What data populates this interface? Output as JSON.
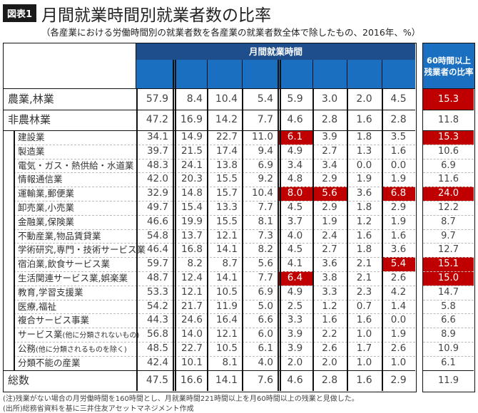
{
  "figure": {
    "badge": "図表1",
    "title": "月間就業時間別就業者数の比率",
    "subtitle": "（各産業における労働時間別の就業者数を各産業の就業者数全体で除したもの、2016年、%）"
  },
  "table": {
    "group_header": "月間就業時間",
    "sub_headers": [
      "",
      "",
      "",
      "",
      "",
      "",
      "",
      ""
    ],
    "right_header_line1": "60時間以上",
    "right_header_line2": "残業者の比率",
    "colors": {
      "header_dark": "#1f4e8c",
      "header_blue": "#1a6fc0",
      "highlight": "#c00000"
    },
    "rows": [
      {
        "name": "農業,林業",
        "level": 0,
        "values": [
          "57.9",
          "8.4",
          "10.4",
          "5.4",
          "5.9",
          "3.0",
          "2.0",
          "4.5"
        ],
        "hl": [],
        "ratio": "15.3",
        "ratio_hl": true
      },
      {
        "name": "非農林業",
        "level": 0,
        "values": [
          "47.2",
          "16.9",
          "14.2",
          "7.7",
          "4.6",
          "2.8",
          "1.6",
          "2.8"
        ],
        "hl": [],
        "ratio": "11.8",
        "ratio_hl": false
      },
      {
        "name": "建設業",
        "level": 1,
        "values": [
          "34.1",
          "14.9",
          "22.7",
          "11.0",
          "6.1",
          "3.9",
          "1.8",
          "3.5"
        ],
        "hl": [
          4
        ],
        "ratio": "15.3",
        "ratio_hl": true
      },
      {
        "name": "製造業",
        "level": 1,
        "values": [
          "39.7",
          "21.5",
          "17.4",
          "9.4",
          "4.9",
          "2.7",
          "1.3",
          "1.6"
        ],
        "hl": [],
        "ratio": "10.6",
        "ratio_hl": false
      },
      {
        "name": "電気・ガス・熱供給・水道業",
        "level": 1,
        "values": [
          "48.3",
          "24.1",
          "13.8",
          "6.9",
          "3.4",
          "3.4",
          "0.0",
          "0.0"
        ],
        "hl": [],
        "ratio": "6.9",
        "ratio_hl": false
      },
      {
        "name": "情報通信業",
        "level": 1,
        "values": [
          "42.0",
          "20.3",
          "15.5",
          "9.2",
          "4.8",
          "2.9",
          "1.9",
          "1.9"
        ],
        "hl": [],
        "ratio": "11.6",
        "ratio_hl": false
      },
      {
        "name": "運輸業,郵便業",
        "level": 1,
        "values": [
          "32.9",
          "14.8",
          "15.7",
          "10.4",
          "8.0",
          "5.6",
          "3.6",
          "6.8"
        ],
        "hl": [
          4,
          5,
          7
        ],
        "ratio": "24.0",
        "ratio_hl": true
      },
      {
        "name": "卸売業,小売業",
        "level": 1,
        "values": [
          "49.7",
          "15.4",
          "13.3",
          "7.7",
          "4.5",
          "2.9",
          "1.8",
          "2.9"
        ],
        "hl": [],
        "ratio": "12.2",
        "ratio_hl": false
      },
      {
        "name": "金融業,保険業",
        "level": 1,
        "values": [
          "46.6",
          "19.9",
          "15.5",
          "8.1",
          "3.7",
          "1.9",
          "1.2",
          "1.9"
        ],
        "hl": [],
        "ratio": "8.7",
        "ratio_hl": false
      },
      {
        "name": "不動産業,物品賃貸業",
        "level": 1,
        "values": [
          "54.8",
          "13.7",
          "12.1",
          "7.3",
          "4.0",
          "2.4",
          "1.6",
          "1.6"
        ],
        "hl": [],
        "ratio": "9.7",
        "ratio_hl": false
      },
      {
        "name": "学術研究,専門・技術サービス業",
        "level": 1,
        "values": [
          "46.4",
          "16.8",
          "14.1",
          "8.2",
          "4.5",
          "2.7",
          "1.8",
          "3.6"
        ],
        "hl": [],
        "ratio": "12.7",
        "ratio_hl": false
      },
      {
        "name": "宿泊業,飲食サービス業",
        "level": 1,
        "values": [
          "59.7",
          "8.2",
          "8.7",
          "5.6",
          "4.1",
          "3.6",
          "2.1",
          "5.4"
        ],
        "hl": [
          7
        ],
        "ratio": "15.1",
        "ratio_hl": true
      },
      {
        "name": "生活関連サービス業,娯楽業",
        "level": 1,
        "values": [
          "48.7",
          "12.4",
          "14.1",
          "7.7",
          "6.4",
          "3.8",
          "2.1",
          "2.6"
        ],
        "hl": [
          4
        ],
        "ratio": "15.0",
        "ratio_hl": true
      },
      {
        "name": "教育,学習支援業",
        "level": 1,
        "values": [
          "53.3",
          "12.1",
          "10.5",
          "6.9",
          "4.9",
          "3.3",
          "2.3",
          "4.2"
        ],
        "hl": [],
        "ratio": "14.7",
        "ratio_hl": false
      },
      {
        "name": "医療,福祉",
        "level": 1,
        "values": [
          "54.2",
          "21.7",
          "11.9",
          "5.0",
          "2.5",
          "1.2",
          "0.7",
          "1.4"
        ],
        "hl": [],
        "ratio": "5.8",
        "ratio_hl": false
      },
      {
        "name": "複合サービス事業",
        "level": 1,
        "values": [
          "44.3",
          "24.6",
          "16.4",
          "6.6",
          "3.3",
          "1.6",
          "1.6",
          "0.0"
        ],
        "hl": [],
        "ratio": "6.6",
        "ratio_hl": false
      },
      {
        "name": "サービス業",
        "name_small": "(他に分類されないもの)",
        "level": 1,
        "values": [
          "56.8",
          "14.0",
          "12.1",
          "6.0",
          "3.9",
          "2.2",
          "1.0",
          "1.9"
        ],
        "hl": [],
        "ratio": "8.9",
        "ratio_hl": false
      },
      {
        "name": "公務",
        "name_small": "(他に分類されるものを除く)",
        "level": 1,
        "values": [
          "48.5",
          "22.7",
          "10.5",
          "6.1",
          "3.9",
          "2.6",
          "1.7",
          "2.6"
        ],
        "hl": [],
        "ratio": "10.9",
        "ratio_hl": false
      },
      {
        "name": "分類不能の産業",
        "level": 1,
        "values": [
          "42.4",
          "10.1",
          "8.1",
          "4.0",
          "2.0",
          "2.0",
          "1.0",
          "1.0"
        ],
        "hl": [],
        "ratio": "6.1",
        "ratio_hl": false
      },
      {
        "name": "総数",
        "level": 0,
        "values": [
          "47.5",
          "16.6",
          "14.1",
          "7.6",
          "4.6",
          "2.8",
          "1.6",
          "2.9"
        ],
        "hl": [],
        "ratio": "11.9",
        "ratio_hl": false
      }
    ]
  },
  "notes": {
    "note": "(注)残業がない場合の月労働時間を160時間とし、月就業時間221時間以上を月60時間以上の残業と見做した。",
    "source": "(出所)総務省資料を基に三井住友アセットマネジメント作成"
  }
}
